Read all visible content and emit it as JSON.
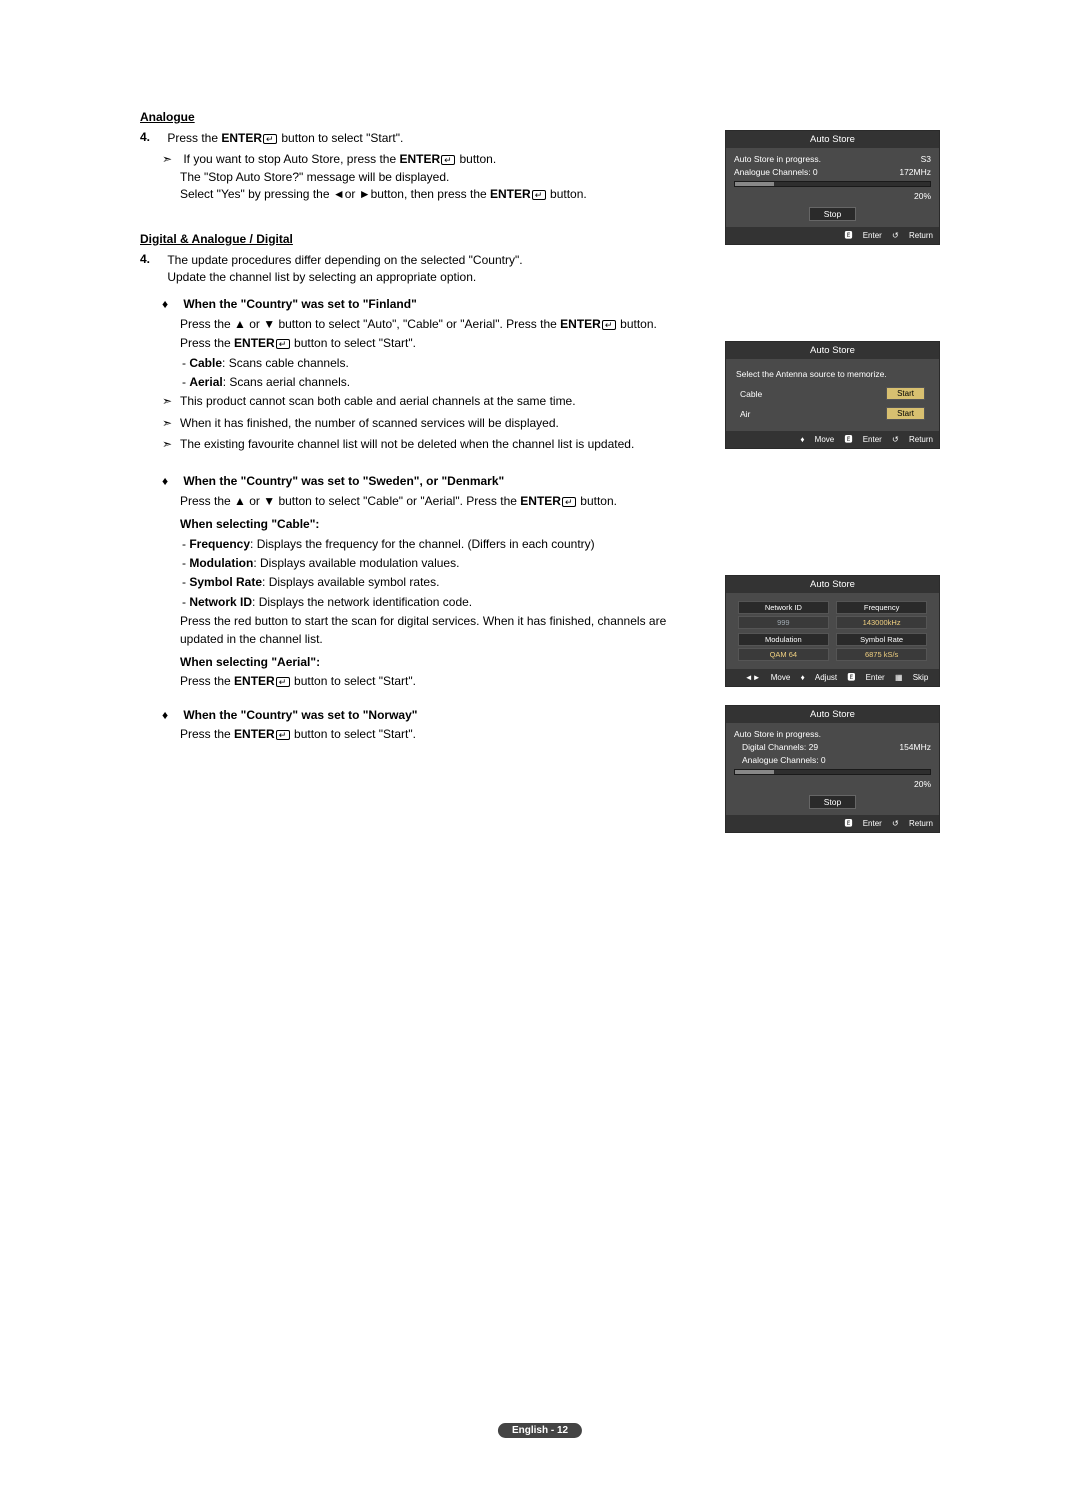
{
  "sections": {
    "analogue": {
      "heading": "Analogue",
      "step_num": "4.",
      "step_line_prefix": "Press the ",
      "step_line_bold": "ENTER",
      "step_line_suffix": " button to select \"Start\".",
      "note1_prefix": "If you want to stop Auto Store, press the ",
      "note1_bold": "ENTER",
      "note1_suffix": " button.",
      "note1_line2": "The \"Stop Auto Store?\" message will be displayed.",
      "note1_line3a": "Select \"Yes\" by pressing the ◄or ►button, then press the ",
      "note1_line3b": "ENTER",
      "note1_line3c": " button."
    },
    "digital": {
      "heading": "Digital & Analogue / Digital",
      "step_num": "4.",
      "step_line1": "The update procedures differ depending on the selected \"Country\".",
      "step_line2": "Update the channel list by selecting an appropriate option.",
      "finland": {
        "title": "When the \"Country\" was set to \"Finland\"",
        "p1a": "Press the ▲ or ▼ button to select \"Auto\", \"Cable\" or \"Aerial\". Press the ",
        "p1b": "ENTER",
        "p1c": " button.",
        "p2a": "Press the ",
        "p2b": "ENTER",
        "p2c": " button to select \"Start\".",
        "d1_bold": "Cable",
        "d1_rest": ": Scans cable channels.",
        "d2_bold": "Aerial",
        "d2_rest": ": Scans aerial channels.",
        "n1": "This product cannot scan both cable and aerial channels at the same time.",
        "n2": "When it has finished, the number of scanned services will be displayed.",
        "n3": "The existing favourite channel list will not be deleted when the channel list is updated."
      },
      "sweden": {
        "title": "When the \"Country\" was set to \"Sweden\", or \"Denmark\"",
        "p1a": "Press the ▲ or ▼ button to select \"Cable\" or \"Aerial\". Press the ",
        "p1b": "ENTER",
        "p1c": " button.",
        "cable_title": "When selecting \"Cable\":",
        "c1_bold": "Frequency",
        "c1_rest": ": Displays the frequency for the channel. (Differs in each country)",
        "c2_bold": "Modulation",
        "c2_rest": ": Displays available modulation values.",
        "c3_bold": "Symbol Rate",
        "c3_rest": ": Displays available symbol rates.",
        "c4_bold": "Network ID",
        "c4_rest": ": Displays the network identification code.",
        "c5": "Press the red button to start the scan for digital services. When it has finished, channels are updated in the channel list.",
        "aerial_title": "When selecting \"Aerial\":",
        "a1_a": "Press the ",
        "a1_b": "ENTER",
        "a1_c": " button to select \"Start\"."
      },
      "norway": {
        "title": "When the \"Country\" was set to \"Norway\"",
        "p1a": "Press the ",
        "p1b": "ENTER",
        "p1c": " button to select \"Start\"."
      }
    }
  },
  "osd1": {
    "title": "Auto Store",
    "status": "Auto Store in progress.",
    "ch": "S3",
    "analogue": "Analogue Channels: 0",
    "freq": "172MHz",
    "percent": "20%",
    "stop": "Stop",
    "f_enter": "Enter",
    "f_return": "Return",
    "progress_pct": 20,
    "colors": {
      "bar": "#888888"
    }
  },
  "osd2": {
    "title": "Auto Store",
    "prompt": "Select the Antenna source to memorize.",
    "opt1": "Cable",
    "opt2": "Air",
    "start": "Start",
    "f_move": "Move",
    "f_enter": "Enter",
    "f_return": "Return"
  },
  "osd3": {
    "title": "Auto Store",
    "p1_t": "Network ID",
    "p1_v": "999",
    "p2_t": "Frequency",
    "p2_v": "143000kHz",
    "p3_t": "Modulation",
    "p3_v": "QAM 64",
    "p4_t": "Symbol Rate",
    "p4_v": "6875 kS/s",
    "f_move": "Move",
    "f_adjust": "Adjust",
    "f_enter": "Enter",
    "f_skip": "Skip"
  },
  "osd4": {
    "title": "Auto Store",
    "status": "Auto Store in progress.",
    "digital": "Digital Channels: 29",
    "analogue": "Analogue Channels: 0",
    "freq": "154MHz",
    "percent": "20%",
    "stop": "Stop",
    "f_enter": "Enter",
    "f_return": "Return",
    "progress_pct": 20
  },
  "footer": "English - 12"
}
